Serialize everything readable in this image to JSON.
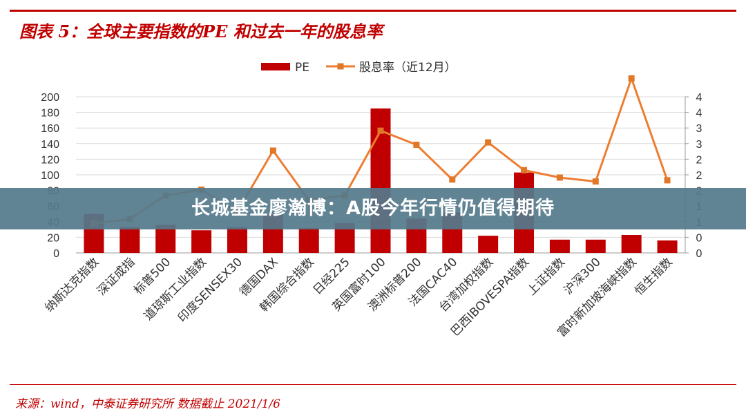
{
  "header": {
    "title": "图表 5：全球主要指数的PE 和过去一年的股息率"
  },
  "footer": {
    "source": "来源：wind，中泰证券研究所   数据截止 2021/1/6"
  },
  "overlay": {
    "banner_text": "长城基金廖瀚博：A股今年行情仍值得期待"
  },
  "colors": {
    "pe": "#c00000",
    "dividend": "#ed7d31",
    "dividend_marker": "#e07828",
    "axis": "#888888"
  },
  "chart_data": {
    "type": "bar",
    "title": "",
    "categories": [
      "纳斯达克指数",
      "深证成指",
      "标普500",
      "道琼斯工业指数",
      "印度SENSEX30",
      "德国DAX",
      "韩国综合指数",
      "日经225",
      "英国富时100",
      "澳洲标普200",
      "法国CAC40",
      "台湾加权指数",
      "巴西IBOVESPA指数",
      "上证指数",
      "沪深300",
      "富时新加坡海峡指数",
      "恒生指数"
    ],
    "series": [
      {
        "name": "PE",
        "type": "bar",
        "axis": "left",
        "values": [
          50,
          33,
          36,
          29,
          33,
          50,
          32,
          38,
          185,
          44,
          52,
          22,
          103,
          17,
          17,
          23,
          16
        ]
      },
      {
        "name": "股息率（近12月）",
        "type": "line",
        "axis": "right",
        "values": [
          0.75,
          0.87,
          1.47,
          1.62,
          1.05,
          2.62,
          1.35,
          1.47,
          3.13,
          2.77,
          1.88,
          2.83,
          2.12,
          1.93,
          1.83,
          4.47,
          1.86
        ]
      }
    ],
    "ylim_left": [
      0,
      200
    ],
    "yticks_left": [
      "200",
      "180",
      "160",
      "140",
      "120",
      "100",
      "80",
      "60",
      "40",
      "20",
      "0"
    ],
    "ylim_right": [
      0,
      4
    ],
    "yticks_right": [
      "4",
      "4",
      "3",
      "3",
      "2",
      "2",
      "2",
      "1",
      "1",
      "0",
      "0"
    ],
    "legend": "top-center",
    "grid": true
  }
}
